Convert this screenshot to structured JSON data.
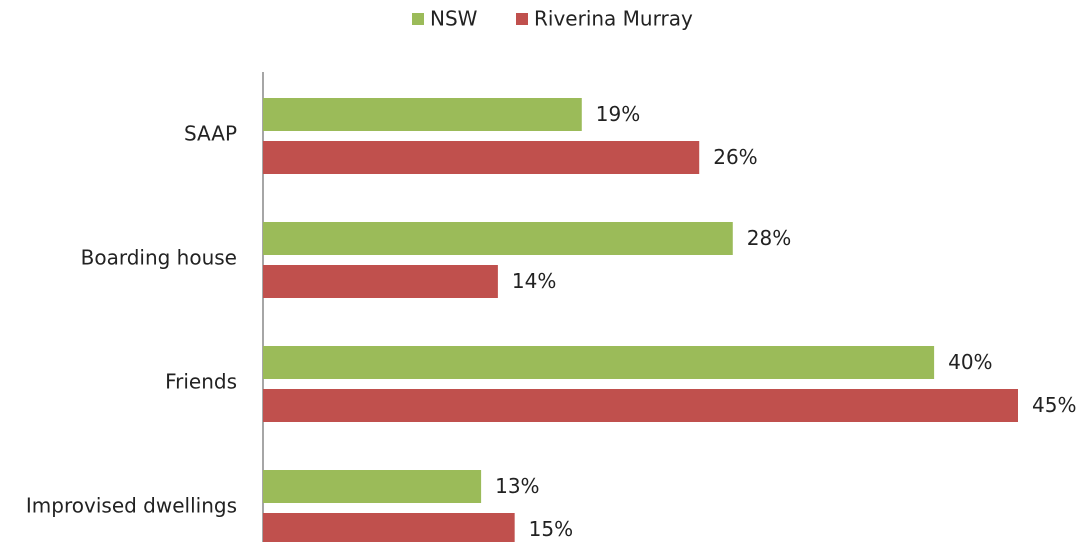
{
  "chart_data": {
    "type": "barh",
    "categories": [
      "SAAP",
      "Boarding house",
      "Friends",
      "Improvised dwellings"
    ],
    "series": [
      {
        "name": "NSW",
        "color": "#9bbb59",
        "values": [
          19,
          28,
          40,
          13
        ],
        "value_labels": [
          "19%",
          "28%",
          "40%",
          "13%"
        ]
      },
      {
        "name": "Riverina Murray",
        "color": "#c0504d",
        "values": [
          26,
          14,
          45,
          15
        ],
        "value_labels": [
          "26%",
          "14%",
          "45%",
          "15%"
        ]
      }
    ],
    "xlim": [
      0,
      45
    ],
    "legend": "top"
  }
}
